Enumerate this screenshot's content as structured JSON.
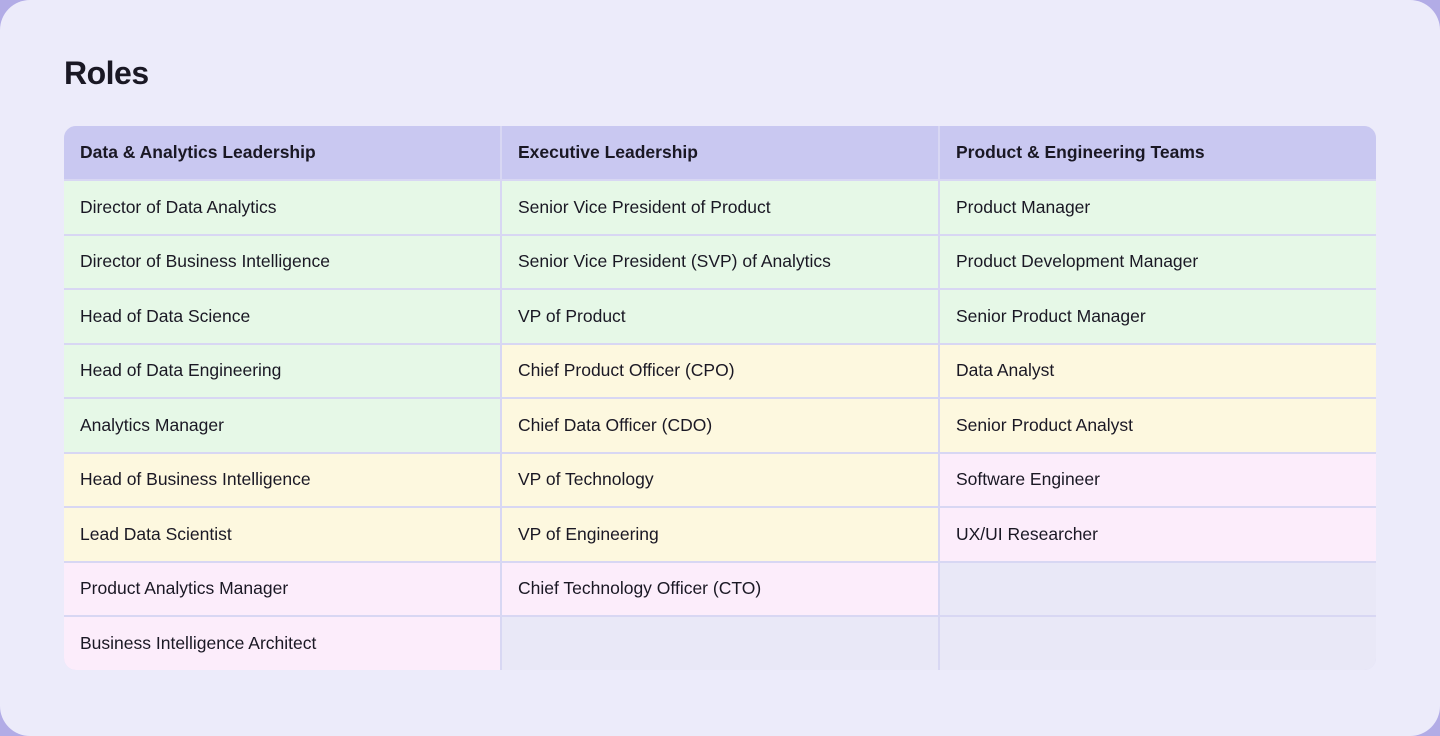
{
  "page": {
    "title": "Roles"
  },
  "colors": {
    "outer_bg": "#b2ace6",
    "card_bg": "#ecebfa",
    "header_bg": "#c9c8f1",
    "green": "#e6f8e7",
    "yellow": "#fdf8df",
    "pink": "#fcedfb",
    "empty": "#e9e8f7",
    "divider": "#d8d7f3",
    "text": "#1a1824"
  },
  "table": {
    "columns": [
      {
        "header": "Data & Analytics Leadership"
      },
      {
        "header": "Executive Leadership"
      },
      {
        "header": "Product & Engineering Teams"
      }
    ],
    "rows": [
      [
        {
          "label": "Director of Data Analytics",
          "tone": "green"
        },
        {
          "label": "Senior Vice President of Product",
          "tone": "green"
        },
        {
          "label": "Product Manager",
          "tone": "green"
        }
      ],
      [
        {
          "label": "Director of Business Intelligence",
          "tone": "green"
        },
        {
          "label": "Senior Vice President (SVP) of Analytics",
          "tone": "green"
        },
        {
          "label": "Product Development Manager",
          "tone": "green"
        }
      ],
      [
        {
          "label": "Head of Data Science",
          "tone": "green"
        },
        {
          "label": "VP of Product",
          "tone": "green"
        },
        {
          "label": "Senior Product Manager",
          "tone": "green"
        }
      ],
      [
        {
          "label": "Head of Data Engineering",
          "tone": "green"
        },
        {
          "label": "Chief Product Officer (CPO)",
          "tone": "yellow"
        },
        {
          "label": "Data Analyst",
          "tone": "yellow"
        }
      ],
      [
        {
          "label": "Analytics Manager",
          "tone": "green"
        },
        {
          "label": "Chief Data Officer (CDO)",
          "tone": "yellow"
        },
        {
          "label": "Senior Product Analyst",
          "tone": "yellow"
        }
      ],
      [
        {
          "label": "Head of Business Intelligence",
          "tone": "yellow"
        },
        {
          "label": "VP of Technology",
          "tone": "yellow"
        },
        {
          "label": "Software Engineer",
          "tone": "pink"
        }
      ],
      [
        {
          "label": "Lead Data Scientist",
          "tone": "yellow"
        },
        {
          "label": "VP of Engineering",
          "tone": "yellow"
        },
        {
          "label": "UX/UI Researcher",
          "tone": "pink"
        }
      ],
      [
        {
          "label": "Product Analytics Manager",
          "tone": "pink"
        },
        {
          "label": "Chief Technology Officer (CTO)",
          "tone": "pink"
        },
        {
          "label": "",
          "tone": "empty"
        }
      ],
      [
        {
          "label": "Business Intelligence Architect",
          "tone": "pink"
        },
        {
          "label": "",
          "tone": "empty"
        },
        {
          "label": "",
          "tone": "empty"
        }
      ]
    ]
  }
}
